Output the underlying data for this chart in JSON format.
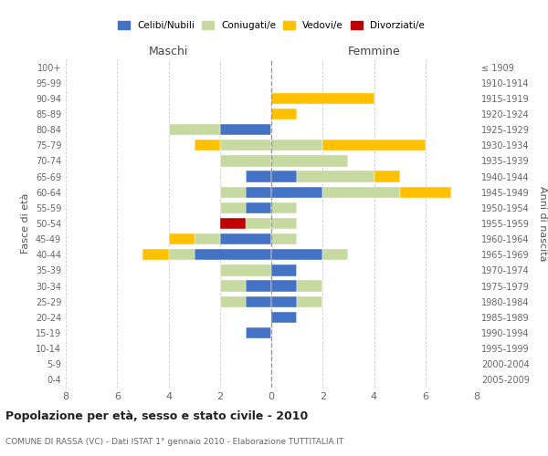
{
  "age_groups": [
    "100+",
    "95-99",
    "90-94",
    "85-89",
    "80-84",
    "75-79",
    "70-74",
    "65-69",
    "60-64",
    "55-59",
    "50-54",
    "45-49",
    "40-44",
    "35-39",
    "30-34",
    "25-29",
    "20-24",
    "15-19",
    "10-14",
    "5-9",
    "0-4"
  ],
  "birth_years": [
    "≤ 1909",
    "1910-1914",
    "1915-1919",
    "1920-1924",
    "1925-1929",
    "1930-1934",
    "1935-1939",
    "1940-1944",
    "1945-1949",
    "1950-1954",
    "1955-1959",
    "1960-1964",
    "1965-1969",
    "1970-1974",
    "1975-1979",
    "1980-1984",
    "1985-1989",
    "1990-1994",
    "1995-1999",
    "2000-2004",
    "2005-2009"
  ],
  "males": {
    "celibi": [
      0,
      0,
      0,
      0,
      2,
      0,
      0,
      1,
      1,
      1,
      0,
      2,
      3,
      0,
      1,
      1,
      0,
      1,
      0,
      0,
      0
    ],
    "coniugati": [
      0,
      0,
      0,
      0,
      2,
      2,
      2,
      0,
      1,
      1,
      1,
      1,
      1,
      2,
      1,
      1,
      0,
      0,
      0,
      0,
      0
    ],
    "vedovi": [
      0,
      0,
      0,
      0,
      0,
      1,
      0,
      0,
      0,
      0,
      0,
      1,
      1,
      0,
      0,
      0,
      0,
      0,
      0,
      0,
      0
    ],
    "divorziati": [
      0,
      0,
      0,
      0,
      0,
      0,
      0,
      0,
      0,
      0,
      1,
      0,
      0,
      0,
      0,
      0,
      0,
      0,
      0,
      0,
      0
    ]
  },
  "females": {
    "celibi": [
      0,
      0,
      0,
      0,
      0,
      0,
      0,
      1,
      2,
      0,
      0,
      0,
      2,
      1,
      1,
      1,
      1,
      0,
      0,
      0,
      0
    ],
    "coniugati": [
      0,
      0,
      0,
      0,
      0,
      2,
      3,
      3,
      3,
      1,
      1,
      1,
      1,
      0,
      1,
      1,
      0,
      0,
      0,
      0,
      0
    ],
    "vedovi": [
      0,
      0,
      4,
      1,
      0,
      4,
      0,
      1,
      2,
      0,
      0,
      0,
      0,
      0,
      0,
      0,
      0,
      0,
      0,
      0,
      0
    ],
    "divorziati": [
      0,
      0,
      0,
      0,
      0,
      0,
      0,
      0,
      0,
      0,
      0,
      0,
      0,
      0,
      0,
      0,
      0,
      0,
      0,
      0,
      0
    ]
  },
  "colors": {
    "celibi": "#4472c4",
    "coniugati": "#c5d9a0",
    "vedovi": "#ffc000",
    "divorziati": "#c00000"
  },
  "legend_labels": [
    "Celibi/Nubili",
    "Coniugati/e",
    "Vedovi/e",
    "Divorziati/e"
  ],
  "title": "Popolazione per età, sesso e stato civile - 2010",
  "subtitle": "COMUNE DI RASSA (VC) - Dati ISTAT 1° gennaio 2010 - Elaborazione TUTTITALIA.IT",
  "xlabel_left": "Maschi",
  "xlabel_right": "Femmine",
  "ylabel_left": "Fasce di età",
  "ylabel_right": "Anni di nascita",
  "xlim": 8,
  "background_color": "#ffffff",
  "grid_color": "#cccccc"
}
